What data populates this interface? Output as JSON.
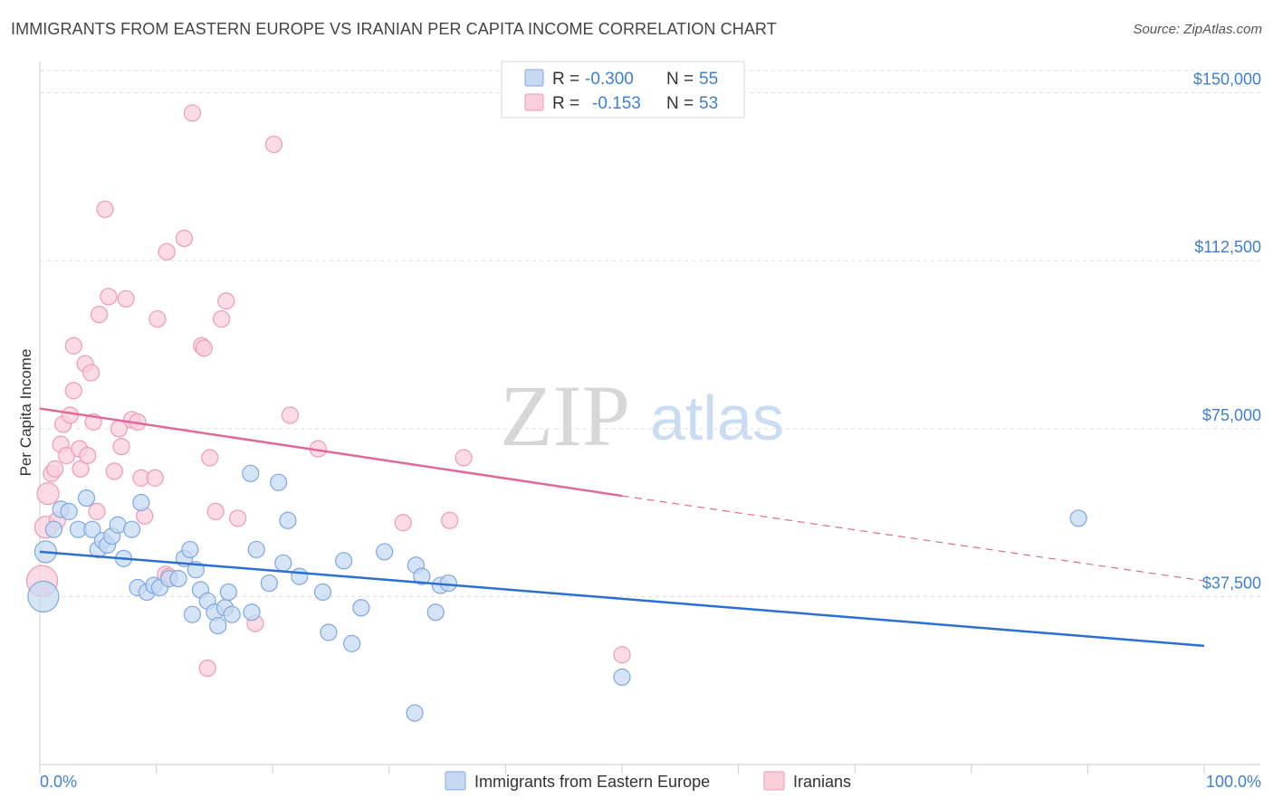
{
  "title": "IMMIGRANTS FROM EASTERN EUROPE VS IRANIAN PER CAPITA INCOME CORRELATION CHART",
  "source": "Source: ZipAtlas.com",
  "watermark": {
    "zip": "ZIP",
    "atlas": "atlas"
  },
  "colors": {
    "blue_fill": "#c5d9f3",
    "blue_stroke": "#7fa8dc",
    "blue_line": "#2a6fd1",
    "pink_fill": "#f9cfdc",
    "pink_stroke": "#ee9ab4",
    "pink_line": "#e0699a",
    "grid": "#dddddd",
    "tick_text": "#3f7fd0"
  },
  "legend_top": [
    {
      "r_label": "R = ",
      "r_value": "-0.300",
      "n_label": "N = ",
      "n_value": "55"
    },
    {
      "r_label": "R = ",
      "r_value": "-0.153",
      "n_label": "N = ",
      "n_value": "53"
    }
  ],
  "chart_data": {
    "type": "scatter",
    "title": "IMMIGRANTS FROM EASTERN EUROPE VS IRANIAN PER CAPITA INCOME CORRELATION CHART",
    "xlabel": "",
    "ylabel": "Per Capita Income",
    "xlim": [
      0,
      100
    ],
    "ylim": [
      0,
      157000
    ],
    "x_tick_labels": [
      "0.0%",
      "100.0%"
    ],
    "y_ticks": [
      37500,
      75000,
      112500,
      150000
    ],
    "y_tick_labels": [
      "$37,500",
      "$75,000",
      "$112,500",
      "$150,000"
    ],
    "grid": "horizontal dashed",
    "legend_position": "top-center and bottom",
    "series": [
      {
        "name": "Immigrants from Eastern Europe",
        "color": "blue",
        "R": -0.3,
        "N": 55,
        "trend": {
          "x0": 0,
          "y0": 47500,
          "x1": 100,
          "y1": 26500
        },
        "points": [
          [
            0.3,
            37500
          ],
          [
            0.5,
            47500
          ],
          [
            1.2,
            52500
          ],
          [
            1.8,
            57000
          ],
          [
            2.5,
            56500
          ],
          [
            3.3,
            52500
          ],
          [
            4.0,
            59500
          ],
          [
            4.5,
            52500
          ],
          [
            5.0,
            48000
          ],
          [
            5.4,
            50000
          ],
          [
            5.8,
            49000
          ],
          [
            6.2,
            51000
          ],
          [
            6.7,
            53500
          ],
          [
            7.2,
            46000
          ],
          [
            7.9,
            52500
          ],
          [
            8.4,
            39500
          ],
          [
            8.7,
            58500
          ],
          [
            9.2,
            38500
          ],
          [
            9.8,
            40000
          ],
          [
            10.3,
            39500
          ],
          [
            11.1,
            41500
          ],
          [
            11.9,
            41500
          ],
          [
            12.4,
            46000
          ],
          [
            12.9,
            48000
          ],
          [
            13.1,
            33500
          ],
          [
            13.4,
            43500
          ],
          [
            13.8,
            39000
          ],
          [
            14.4,
            36500
          ],
          [
            15.0,
            34000
          ],
          [
            15.3,
            31000
          ],
          [
            15.9,
            35000
          ],
          [
            16.2,
            38500
          ],
          [
            16.5,
            33500
          ],
          [
            18.1,
            65000
          ],
          [
            18.2,
            34000
          ],
          [
            18.6,
            48000
          ],
          [
            19.7,
            40500
          ],
          [
            20.5,
            63000
          ],
          [
            20.9,
            45000
          ],
          [
            21.3,
            54500
          ],
          [
            22.3,
            42000
          ],
          [
            24.3,
            38500
          ],
          [
            24.8,
            29500
          ],
          [
            26.1,
            45500
          ],
          [
            26.8,
            27000
          ],
          [
            27.6,
            35000
          ],
          [
            29.6,
            47500
          ],
          [
            32.2,
            11500
          ],
          [
            32.3,
            44500
          ],
          [
            32.8,
            42000
          ],
          [
            34.0,
            34000
          ],
          [
            34.4,
            40000
          ],
          [
            35.1,
            40500
          ],
          [
            50.0,
            19500
          ],
          [
            89.2,
            55000
          ]
        ]
      },
      {
        "name": "Iranians",
        "color": "pink",
        "R": -0.153,
        "N": 53,
        "trend": {
          "x0": 0,
          "y0": 79500,
          "x1": 50,
          "y1": 60000,
          "dashed_to": {
            "x": 100,
            "y": 41000
          }
        },
        "points": [
          [
            0.2,
            41000
          ],
          [
            0.5,
            53000
          ],
          [
            0.7,
            60500
          ],
          [
            1.0,
            65000
          ],
          [
            1.3,
            66000
          ],
          [
            1.5,
            54500
          ],
          [
            1.8,
            71500
          ],
          [
            2.0,
            76000
          ],
          [
            2.3,
            69000
          ],
          [
            2.6,
            78000
          ],
          [
            2.9,
            93500
          ],
          [
            2.9,
            83500
          ],
          [
            3.4,
            70500
          ],
          [
            3.5,
            66000
          ],
          [
            3.9,
            89500
          ],
          [
            4.1,
            69000
          ],
          [
            4.4,
            87500
          ],
          [
            4.6,
            76500
          ],
          [
            4.9,
            56500
          ],
          [
            5.1,
            100500
          ],
          [
            5.6,
            124000
          ],
          [
            5.9,
            104500
          ],
          [
            6.4,
            65500
          ],
          [
            6.8,
            75000
          ],
          [
            7.0,
            71000
          ],
          [
            7.4,
            104000
          ],
          [
            7.9,
            77000
          ],
          [
            8.4,
            76500
          ],
          [
            8.7,
            64000
          ],
          [
            9.0,
            55500
          ],
          [
            9.9,
            64000
          ],
          [
            10.1,
            99500
          ],
          [
            10.8,
            42500
          ],
          [
            10.9,
            114500
          ],
          [
            11.1,
            42000
          ],
          [
            12.4,
            117500
          ],
          [
            13.1,
            145500
          ],
          [
            13.9,
            93500
          ],
          [
            14.1,
            93000
          ],
          [
            14.4,
            21500
          ],
          [
            14.6,
            68500
          ],
          [
            15.1,
            56500
          ],
          [
            15.6,
            99500
          ],
          [
            16.0,
            103500
          ],
          [
            17.0,
            55000
          ],
          [
            18.5,
            31500
          ],
          [
            20.1,
            138500
          ],
          [
            21.5,
            78000
          ],
          [
            23.9,
            70500
          ],
          [
            31.2,
            54000
          ],
          [
            35.2,
            54500
          ],
          [
            36.4,
            68500
          ],
          [
            50.0,
            24500
          ]
        ]
      }
    ]
  },
  "legend_bottom": [
    {
      "label": "Immigrants from Eastern Europe",
      "color": "blue"
    },
    {
      "label": "Iranians",
      "color": "pink"
    }
  ]
}
